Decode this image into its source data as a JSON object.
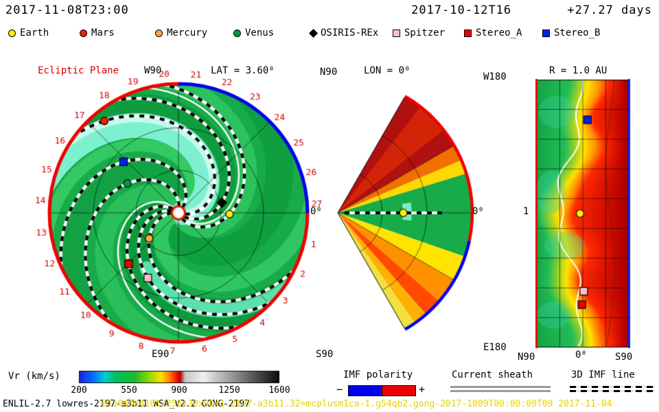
{
  "header": {
    "timestamp": "2017-11-08T23:00",
    "run_start": "2017-10-12T16",
    "elapsed_days": "+27.27 days"
  },
  "markers_legend": [
    {
      "name": "Earth",
      "shape": "circle",
      "color": "#ffee00"
    },
    {
      "name": "Mars",
      "shape": "circle",
      "color": "#ee2200"
    },
    {
      "name": "Mercury",
      "shape": "circle",
      "color": "#ffaa33"
    },
    {
      "name": "Venus",
      "shape": "circle",
      "color": "#009944"
    },
    {
      "name": "OSIRIS-REx",
      "shape": "diamond",
      "color": "#000000"
    },
    {
      "name": "Spitzer",
      "shape": "square",
      "color": "#ffc0cb"
    },
    {
      "name": "Stereo_A",
      "shape": "square",
      "color": "#ee0000"
    },
    {
      "name": "Stereo_B",
      "shape": "square",
      "color": "#0022ee"
    }
  ],
  "chart_data": [
    {
      "id": "ecliptic-plane",
      "type": "heatmap",
      "projection": "polar",
      "field": "Vr",
      "title": "Ecliptic Plane",
      "labels": {
        "top": "W90",
        "bottom": "E90",
        "right": "0⁰",
        "lat": "LAT = 3.60⁰"
      },
      "day_ticks": {
        "count": 27,
        "period_days": 27.27
      },
      "spiral_wrap_deg": 160,
      "polarity": {
        "negative_color": "#0000ee",
        "positive_color": "#ee0000"
      },
      "markers": [
        {
          "name": "Earth",
          "x": 0.4,
          "y": 0.01
        },
        {
          "name": "OSIRIS-REx",
          "x": 0.34,
          "y": -0.08
        },
        {
          "name": "Mercury",
          "x": -0.23,
          "y": 0.2
        },
        {
          "name": "Venus",
          "x": -0.4,
          "y": -0.23
        },
        {
          "name": "Mars",
          "x": -0.58,
          "y": -0.72
        },
        {
          "name": "Stereo_A",
          "x": -0.39,
          "y": 0.4
        },
        {
          "name": "Stereo_B",
          "x": -0.43,
          "y": -0.4
        },
        {
          "name": "Spitzer",
          "x": -0.24,
          "y": 0.51
        }
      ]
    },
    {
      "id": "meridional-plane",
      "type": "heatmap",
      "projection": "polar-wedge",
      "half_angle_deg": 60,
      "labels": {
        "top_left": "N90",
        "title": "LON = 0⁰",
        "right": "0⁰",
        "bottom_left": "S90"
      },
      "polarity": {
        "negative_color": "#0000ee",
        "positive_color": "#ee0000",
        "split_deg": 12
      },
      "dashed_line_r": 0.78,
      "sectors": [
        {
          "from": -60,
          "to": -30,
          "color": "#b01010"
        },
        {
          "from": -52,
          "to": -38,
          "color": "#d42408"
        },
        {
          "from": -30,
          "to": -23,
          "color": "#f07000"
        },
        {
          "from": -23,
          "to": -17,
          "color": "#ffd800"
        },
        {
          "from": -17,
          "to": 19,
          "color": "#17ab49"
        },
        {
          "from": 19,
          "to": 30,
          "color": "#ffe400"
        },
        {
          "from": 30,
          "to": 41,
          "color": "#ff9100"
        },
        {
          "from": 41,
          "to": 49,
          "color": "#ff4a00"
        },
        {
          "from": 49,
          "to": 55,
          "color": "#ffb000"
        },
        {
          "from": 55,
          "to": 60,
          "color": "#f0e040"
        }
      ],
      "markers": [
        {
          "name": "Earth",
          "r": 0.49,
          "angle_deg": 0
        }
      ]
    },
    {
      "id": "radius-1au-map",
      "type": "heatmap",
      "projection": "lat-lon",
      "labels": {
        "top_left": "W180",
        "title": "R = 1.0 AU",
        "bottom_left": "E180",
        "left_tick": "1",
        "axis_bottom": [
          "N90",
          "0⁰",
          "S90"
        ]
      },
      "polarity": {
        "negative_color": "#0022ee",
        "positive_color": "#ee0000"
      },
      "palette": {
        "green": "#14a546",
        "green_dark": "#0e9a3e",
        "yellow": "#ffe400",
        "orange": "#ff9100",
        "red": "#ff2a00",
        "dark_red": "#b80000"
      },
      "markers": [
        {
          "name": "Stereo_B",
          "x": 0.55,
          "y": 0.15
        },
        {
          "name": "Earth",
          "x": 0.47,
          "y": 0.5
        },
        {
          "name": "Spitzer",
          "x": 0.51,
          "y": 0.79
        },
        {
          "name": "Stereo_A",
          "x": 0.49,
          "y": 0.84
        }
      ]
    }
  ],
  "colorbar": {
    "label": "Vr (km/s)",
    "min": 200,
    "max": 1600,
    "ticks": [
      200,
      550,
      900,
      1250,
      1600
    ],
    "stops": [
      [
        0,
        "#2020d8"
      ],
      [
        0.07,
        "#0070ff"
      ],
      [
        0.13,
        "#00d0d0"
      ],
      [
        0.18,
        "#00c060"
      ],
      [
        0.28,
        "#20b830"
      ],
      [
        0.35,
        "#90d800"
      ],
      [
        0.41,
        "#ffe000"
      ],
      [
        0.45,
        "#ff8800"
      ],
      [
        0.48,
        "#ff2800"
      ],
      [
        0.505,
        "#b80000"
      ],
      [
        0.53,
        "#c8c8c8"
      ],
      [
        0.62,
        "#efefef"
      ],
      [
        1,
        "#0a0a0a"
      ]
    ]
  },
  "legend_bottom": {
    "imf": {
      "label": "IMF polarity",
      "minus": "−",
      "plus": "+",
      "neg_color": "#0000ee",
      "pos_color": "#ee0000"
    },
    "sheath": {
      "label": "Current sheath"
    },
    "imf_line": {
      "label": "3D IMF line"
    }
  },
  "footer": {
    "model_info": "ENLIL-2.7 lowres-2197-a3b11 WSA_V2.2 GONG-2197",
    "run_id": "E1104034101/256x30x90x1.2197-a3b11.32=mcplusm1ca-1.g54qb2.gong-2017-1009T00:00:00T09  2017-11-04"
  }
}
